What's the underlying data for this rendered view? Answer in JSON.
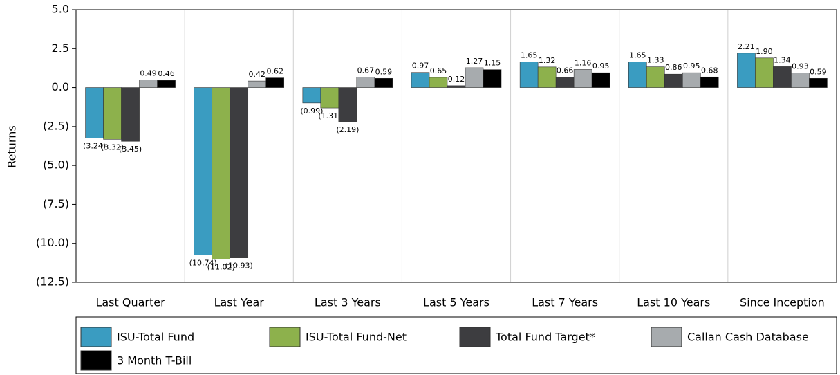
{
  "chart_data": {
    "type": "bar",
    "y_label": "Returns",
    "categories": [
      "Last Quarter",
      "Last Year",
      "Last 3 Years",
      "Last 5 Years",
      "Last 7 Years",
      "Last 10 Years",
      "Since Inception"
    ],
    "series": [
      {
        "name": "ISU-Total Fund",
        "color": "#3a9cc1",
        "values": [
          -3.24,
          -10.74,
          -0.99,
          0.97,
          1.65,
          1.65,
          2.21
        ],
        "value_labels": [
          "(3.24)",
          "(10.74)",
          "(0.99)",
          "0.97",
          "1.65",
          "1.65",
          "2.21"
        ]
      },
      {
        "name": "ISU-Total Fund-Net",
        "color": "#8db14c",
        "values": [
          -3.32,
          -11.02,
          -1.31,
          0.65,
          1.32,
          1.33,
          1.9
        ],
        "value_labels": [
          "(3.32)",
          "(11.02)",
          "(1.31)",
          "0.65",
          "1.32",
          "1.33",
          "1.90"
        ]
      },
      {
        "name": "Total Fund Target*",
        "color": "#3d3d40",
        "values": [
          -3.45,
          -10.93,
          -2.19,
          0.12,
          0.66,
          0.86,
          1.34
        ],
        "value_labels": [
          "(3.45)",
          "(10.93)",
          "(2.19)",
          "0.12",
          "0.66",
          "0.86",
          "1.34"
        ]
      },
      {
        "name": "Callan Cash Database",
        "color": "#a7abae",
        "values": [
          0.49,
          0.42,
          0.67,
          1.27,
          1.16,
          0.95,
          0.93
        ],
        "value_labels": [
          "0.49",
          "0.42",
          "0.67",
          "1.27",
          "1.16",
          "0.95",
          "0.93"
        ]
      },
      {
        "name": "3 Month T-Bill",
        "color": "#000000",
        "values": [
          0.46,
          0.62,
          0.59,
          1.15,
          0.95,
          0.68,
          0.59
        ],
        "value_labels": [
          "0.46",
          "0.62",
          "0.59",
          "1.15",
          "0.95",
          "0.68",
          "0.59"
        ]
      }
    ],
    "ylim": [
      -12.5,
      5.0
    ],
    "yticks": [
      {
        "value": 5.0,
        "label": "5.0"
      },
      {
        "value": 2.5,
        "label": "2.5"
      },
      {
        "value": 0.0,
        "label": "0.0"
      },
      {
        "value": -2.5,
        "label": "(2.5)"
      },
      {
        "value": -5.0,
        "label": "(5.0)"
      },
      {
        "value": -7.5,
        "label": "(7.5)"
      },
      {
        "value": -10.0,
        "label": "(10.0)"
      },
      {
        "value": -12.5,
        "label": "(12.5)"
      }
    ],
    "negative_color": "#c8202a",
    "category_separators": true,
    "legend": "bottom"
  }
}
